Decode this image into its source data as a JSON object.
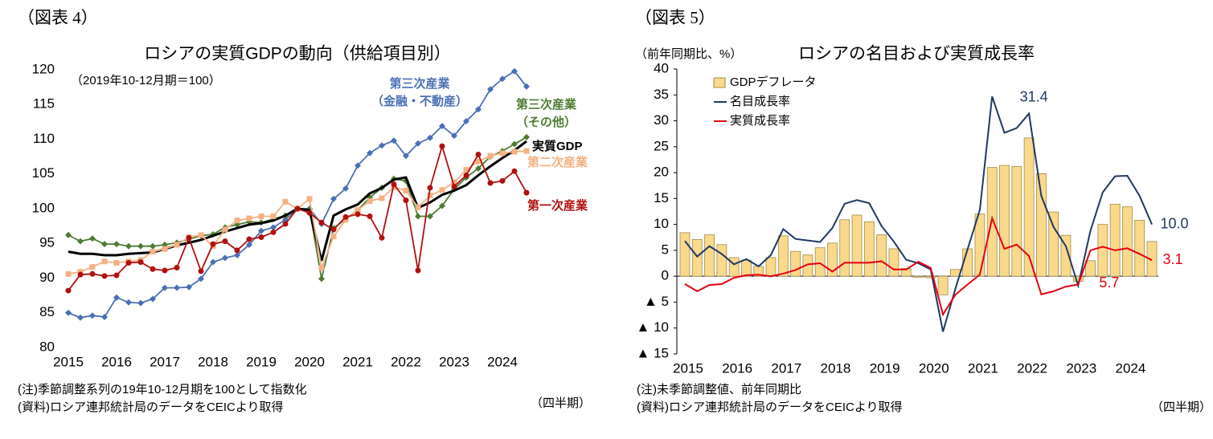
{
  "chart_data": [
    {
      "type": "line",
      "figure_label": "（図表 4）",
      "title": "ロシアの実質GDPの動向（供給項目別）",
      "subtitle": "（2019年10-12月期＝100）",
      "notes": [
        "(注)季節調整系列の19年10-12月期を100として指数化",
        "(資料)ロシア連邦統計局のデータをCEICより取得"
      ],
      "x_unit_label": "（四半期）",
      "categories": [
        "2015",
        null,
        null,
        null,
        "2016",
        null,
        null,
        null,
        "2017",
        null,
        null,
        null,
        "2018",
        null,
        null,
        null,
        "2019",
        null,
        null,
        null,
        "2020",
        null,
        null,
        null,
        "2021",
        null,
        null,
        null,
        "2022",
        null,
        null,
        null,
        "2023",
        null,
        null,
        null,
        "2024",
        null,
        null
      ],
      "ylim": [
        80,
        120
      ],
      "yticks": [
        80,
        85,
        90,
        95,
        100,
        105,
        110,
        115,
        120
      ],
      "grid": false,
      "series": [
        {
          "name": "第三次産業\n（金融・不動産）",
          "color": "#4a6fb5",
          "marker": "diamond",
          "values": [
            85.0,
            84.3,
            84.6,
            84.4,
            87.2,
            86.5,
            86.4,
            87.0,
            88.6,
            88.6,
            88.7,
            89.9,
            92.3,
            92.9,
            93.3,
            94.8,
            96.8,
            97.3,
            98.4,
            100.0,
            100.0,
            97.8,
            101.4,
            102.9,
            106.2,
            108.0,
            109.1,
            109.8,
            107.6,
            109.4,
            110.2,
            111.9,
            110.5,
            112.6,
            114.3,
            117.2,
            118.7,
            119.8,
            117.6
          ]
        },
        {
          "name": "第三次産業\n（その他）",
          "color": "#4f7b33",
          "marker": "diamond",
          "values": [
            96.2,
            95.3,
            95.7,
            94.9,
            94.9,
            94.6,
            94.6,
            94.6,
            94.8,
            95.1,
            95.6,
            96.1,
            96.3,
            97.3,
            97.7,
            98.1,
            98.0,
            98.5,
            99.0,
            100.0,
            99.9,
            89.9,
            97.2,
            98.5,
            99.8,
            101.6,
            103.0,
            104.3,
            104.0,
            98.9,
            98.9,
            100.4,
            102.8,
            104.5,
            105.8,
            107.5,
            108.3,
            109.3,
            110.3
          ]
        },
        {
          "name": "実質GDP",
          "color": "#000000",
          "marker": "none",
          "values": [
            93.8,
            93.5,
            93.5,
            93.3,
            93.3,
            93.5,
            93.6,
            93.7,
            94.2,
            94.7,
            95.1,
            95.5,
            96.1,
            96.7,
            97.2,
            97.7,
            97.9,
            98.3,
            99.0,
            100.0,
            99.8,
            92.5,
            99.0,
            99.9,
            100.6,
            102.2,
            103.0,
            104.2,
            104.5,
            100.1,
            100.9,
            102.0,
            102.6,
            103.4,
            104.8,
            106.1,
            107.3,
            108.4,
            109.7
          ]
        },
        {
          "name": "第二次産業",
          "color": "#f4b183",
          "marker": "square",
          "values": [
            90.6,
            90.9,
            91.6,
            92.4,
            92.2,
            92.4,
            92.6,
            93.8,
            94.2,
            94.8,
            95.9,
            96.2,
            94.6,
            97.0,
            98.3,
            98.6,
            98.9,
            98.9,
            101.0,
            100.0,
            101.4,
            91.5,
            96.0,
            98.4,
            99.8,
            101.1,
            101.5,
            103.1,
            102.6,
            100.2,
            101.9,
            102.7,
            103.8,
            105.6,
            106.8,
            107.6,
            108.0,
            108.2,
            108.3
          ]
        },
        {
          "name": "第一次産業",
          "color": "#b01010",
          "marker": "circle",
          "values": [
            88.2,
            90.5,
            90.6,
            90.3,
            90.4,
            92.2,
            92.3,
            91.3,
            91.1,
            91.5,
            95.8,
            91.0,
            94.9,
            95.3,
            94.0,
            95.6,
            95.9,
            96.6,
            97.8,
            100.0,
            99.4,
            98.0,
            97.0,
            98.8,
            99.2,
            98.9,
            95.8,
            103.5,
            101.2,
            91.1,
            103.0,
            109.0,
            103.2,
            104.8,
            107.8,
            103.7,
            104.0,
            105.4,
            102.3
          ]
        }
      ]
    },
    {
      "type": "combo",
      "figure_label": "（図表 5）",
      "title": "ロシアの名目および実質成長率",
      "ylabel": "（前年同期比、%）",
      "notes": [
        "(注)未季節調整値、前年同期比",
        "(資料)ロシア連邦統計局のデータをCEICより取得"
      ],
      "x_unit_label": "（四半期）",
      "categories": [
        "2015",
        null,
        null,
        null,
        "2016",
        null,
        null,
        null,
        "2017",
        null,
        null,
        null,
        "2018",
        null,
        null,
        null,
        "2019",
        null,
        null,
        null,
        "2020",
        null,
        null,
        null,
        "2021",
        null,
        null,
        null,
        "2022",
        null,
        null,
        null,
        "2023",
        null,
        null,
        null,
        "2024",
        null,
        null
      ],
      "ylim": [
        -15,
        40
      ],
      "yticks": [
        {
          "value": -15,
          "label": "▲ 15"
        },
        {
          "value": -10,
          "label": "▲ 10"
        },
        {
          "value": -5,
          "label": "▲ 5"
        },
        0,
        5,
        10,
        15,
        20,
        25,
        30,
        35,
        40
      ],
      "grid": false,
      "legend": "upper left",
      "series": [
        {
          "name": "GDPデフレータ",
          "type": "bar",
          "color": "#f9d98b",
          "values": [
            8.4,
            7.1,
            8.0,
            6.1,
            3.6,
            3.1,
            1.9,
            3.6,
            7.8,
            4.8,
            4.1,
            5.5,
            6.4,
            10.9,
            11.8,
            10.5,
            8.0,
            5.3,
            1.5,
            -0.2,
            -0.3,
            -3.6,
            1.3,
            5.3,
            12.0,
            21.0,
            21.4,
            21.2,
            26.7,
            19.8,
            12.4,
            7.9,
            -1.0,
            3.0,
            10.0,
            13.9,
            13.4,
            10.8,
            6.7
          ]
        },
        {
          "name": "名目成長率",
          "type": "line",
          "color": "#1f3864",
          "values": [
            6.8,
            3.8,
            5.8,
            4.3,
            2.3,
            3.3,
            1.9,
            4.1,
            9.1,
            7.2,
            6.9,
            6.6,
            9.3,
            14.0,
            14.7,
            14.1,
            9.7,
            6.7,
            3.2,
            2.5,
            1.3,
            -10.7,
            -2.5,
            5.2,
            12.8,
            34.7,
            27.7,
            28.6,
            31.4,
            15.5,
            9.5,
            5.8,
            -1.8,
            8.8,
            16.2,
            19.3,
            19.4,
            15.5,
            10.0
          ],
          "value_labels": [
            null,
            null,
            null,
            null,
            null,
            null,
            null,
            null,
            null,
            null,
            null,
            null,
            null,
            null,
            null,
            null,
            null,
            null,
            null,
            null,
            null,
            null,
            null,
            null,
            null,
            null,
            null,
            null,
            "31.4",
            null,
            null,
            null,
            null,
            null,
            null,
            null,
            null,
            null,
            "10.0"
          ]
        },
        {
          "name": "実質成長率",
          "type": "line",
          "color": "#e60012",
          "values": [
            -1.5,
            -2.9,
            -1.7,
            -1.5,
            -0.3,
            0.2,
            0.3,
            0.0,
            0.5,
            1.2,
            2.3,
            2.5,
            0.9,
            2.6,
            2.6,
            2.6,
            2.9,
            1.3,
            1.3,
            2.8,
            1.6,
            -7.4,
            -3.6,
            -1.6,
            0.3,
            11.2,
            5.3,
            6.1,
            3.9,
            -3.5,
            -2.9,
            -2.0,
            -1.6,
            5.0,
            5.7,
            5.0,
            5.4,
            4.3,
            3.1
          ],
          "value_labels": [
            null,
            null,
            null,
            null,
            null,
            null,
            null,
            null,
            null,
            null,
            null,
            null,
            null,
            null,
            null,
            null,
            null,
            null,
            null,
            null,
            null,
            null,
            null,
            null,
            null,
            null,
            null,
            null,
            null,
            null,
            null,
            null,
            null,
            null,
            "5.7",
            null,
            null,
            null,
            "3.1"
          ]
        }
      ]
    }
  ]
}
